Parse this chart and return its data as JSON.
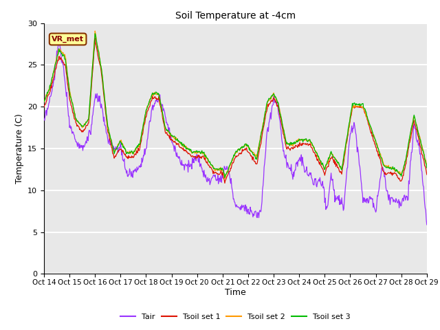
{
  "title": "Soil Temperature at -4cm",
  "xlabel": "Time",
  "ylabel": "Temperature (C)",
  "ylim": [
    0,
    30
  ],
  "xlim": [
    0,
    360
  ],
  "tick_labels": [
    "Oct 14",
    "Oct 15",
    "Oct 16",
    "Oct 17",
    "Oct 18",
    "Oct 19",
    "Oct 20",
    "Oct 21",
    "Oct 22",
    "Oct 23",
    "Oct 24",
    "Oct 25",
    "Oct 26",
    "Oct 27",
    "Oct 28",
    "Oct 29"
  ],
  "tick_positions": [
    0,
    24,
    48,
    72,
    96,
    120,
    144,
    168,
    192,
    216,
    240,
    264,
    288,
    312,
    336,
    360
  ],
  "colors": {
    "Tair": "#9933FF",
    "Tsoil1": "#DD1100",
    "Tsoil2": "#FF9900",
    "Tsoil3": "#00BB00"
  },
  "annotation": "VR_met",
  "annotation_facecolor": "#FFFF99",
  "annotation_edgecolor": "#883300",
  "annotation_textcolor": "#880000",
  "bg_color": "#E8E8E8",
  "grid_color": "white",
  "n_points": 721,
  "legend_labels": [
    "Tair",
    "Tsoil set 1",
    "Tsoil set 2",
    "Tsoil set 3"
  ]
}
